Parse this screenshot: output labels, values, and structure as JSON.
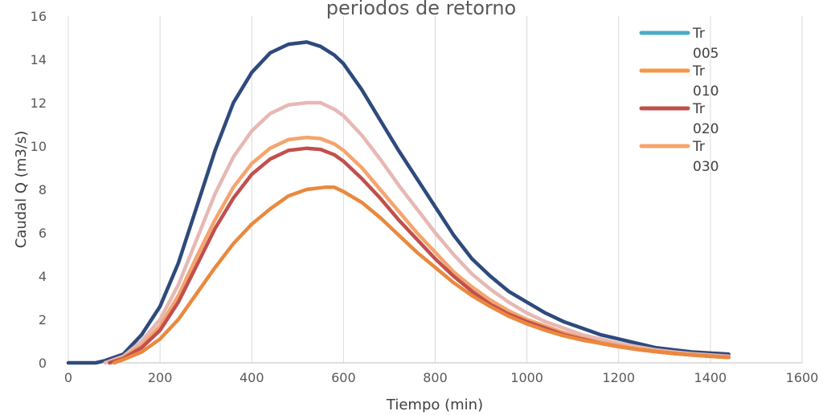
{
  "chart_data": {
    "type": "line",
    "title": "periodos de retorno",
    "xlabel": "Tiempo (min)",
    "ylabel": "Caudal Q (m3/s)",
    "xlim": [
      0,
      1600
    ],
    "ylim": [
      0,
      16
    ],
    "xticks": [
      0,
      200,
      400,
      600,
      800,
      1000,
      1200,
      1400,
      1600
    ],
    "yticks": [
      0,
      2,
      4,
      6,
      8,
      10,
      12,
      14,
      16
    ],
    "xtick_labels": [
      "0",
      "200",
      "400",
      "600",
      "800",
      "1000",
      "1200",
      "1400",
      "1600"
    ],
    "ytick_labels": [
      "0",
      "2",
      "4",
      "6",
      "8",
      "10",
      "12",
      "14",
      "16"
    ],
    "grid": "vertical",
    "legend_position": "top-right",
    "legend": [
      {
        "line1": "Tr",
        "line2": "005",
        "color": "#4BACC6"
      },
      {
        "line1": "Tr",
        "line2": "010",
        "color": "#F79646"
      },
      {
        "line1": "Tr",
        "line2": "020",
        "color": "#C0504D"
      },
      {
        "line1": "Tr",
        "line2": "030",
        "color": "#F5A46E"
      }
    ],
    "series": [
      {
        "color": "#2E4A7D",
        "x": [
          0,
          60,
          80,
          120,
          160,
          200,
          240,
          280,
          320,
          360,
          400,
          440,
          480,
          520,
          550,
          580,
          600,
          640,
          680,
          720,
          760,
          800,
          840,
          880,
          920,
          960,
          1000,
          1040,
          1080,
          1120,
          1160,
          1200,
          1240,
          1280,
          1320,
          1360,
          1400,
          1440
        ],
        "y": [
          0,
          0,
          0.1,
          0.4,
          1.3,
          2.6,
          4.6,
          7.2,
          9.8,
          12.0,
          13.4,
          14.3,
          14.7,
          14.8,
          14.6,
          14.2,
          13.8,
          12.6,
          11.2,
          9.8,
          8.5,
          7.2,
          5.9,
          4.8,
          4.0,
          3.3,
          2.8,
          2.3,
          1.9,
          1.6,
          1.3,
          1.1,
          0.9,
          0.7,
          0.6,
          0.5,
          0.45,
          0.4
        ]
      },
      {
        "color": "#E6B8B4",
        "x": [
          80,
          120,
          160,
          200,
          240,
          280,
          320,
          360,
          400,
          440,
          480,
          520,
          550,
          580,
          600,
          640,
          680,
          720,
          760,
          800,
          840,
          880,
          920,
          960,
          1000,
          1040,
          1080,
          1120,
          1160,
          1200,
          1240,
          1280,
          1320,
          1360,
          1400,
          1440
        ],
        "y": [
          0,
          0.3,
          1.0,
          2.0,
          3.6,
          5.7,
          7.8,
          9.5,
          10.7,
          11.5,
          11.9,
          12.0,
          12.0,
          11.7,
          11.4,
          10.5,
          9.4,
          8.2,
          7.1,
          6.0,
          5.0,
          4.1,
          3.4,
          2.8,
          2.3,
          1.9,
          1.6,
          1.3,
          1.1,
          0.9,
          0.75,
          0.6,
          0.5,
          0.42,
          0.36,
          0.3
        ]
      },
      {
        "color": "#F5A46E",
        "x": [
          90,
          120,
          160,
          200,
          240,
          280,
          320,
          360,
          400,
          440,
          480,
          520,
          550,
          580,
          600,
          640,
          680,
          720,
          760,
          800,
          840,
          880,
          920,
          960,
          1000,
          1040,
          1080,
          1120,
          1160,
          1200,
          1240,
          1280,
          1320,
          1360,
          1400,
          1440
        ],
        "y": [
          0,
          0.25,
          0.8,
          1.7,
          3.1,
          4.9,
          6.6,
          8.1,
          9.2,
          9.9,
          10.3,
          10.4,
          10.35,
          10.1,
          9.8,
          9.0,
          8.0,
          7.0,
          6.0,
          5.1,
          4.2,
          3.5,
          2.9,
          2.4,
          2.0,
          1.7,
          1.4,
          1.15,
          0.95,
          0.8,
          0.65,
          0.55,
          0.45,
          0.38,
          0.32,
          0.27
        ]
      },
      {
        "color": "#C0504D",
        "x": [
          90,
          120,
          160,
          200,
          240,
          280,
          320,
          360,
          400,
          440,
          480,
          520,
          550,
          580,
          600,
          640,
          680,
          720,
          760,
          800,
          840,
          880,
          920,
          960,
          1000,
          1040,
          1080,
          1120,
          1160,
          1200,
          1240,
          1280,
          1320,
          1360,
          1400,
          1440
        ],
        "y": [
          0,
          0.2,
          0.7,
          1.5,
          2.8,
          4.5,
          6.2,
          7.6,
          8.7,
          9.4,
          9.8,
          9.9,
          9.85,
          9.6,
          9.3,
          8.5,
          7.6,
          6.6,
          5.7,
          4.8,
          4.0,
          3.3,
          2.7,
          2.25,
          1.9,
          1.6,
          1.3,
          1.1,
          0.9,
          0.75,
          0.62,
          0.52,
          0.43,
          0.36,
          0.3,
          0.25
        ]
      },
      {
        "color": "#E9893E",
        "x": [
          100,
          120,
          160,
          200,
          240,
          280,
          320,
          360,
          400,
          440,
          480,
          520,
          560,
          580,
          600,
          640,
          680,
          720,
          760,
          800,
          840,
          880,
          920,
          960,
          1000,
          1040,
          1080,
          1120,
          1160,
          1200,
          1240,
          1280,
          1320,
          1360,
          1400,
          1440
        ],
        "y": [
          0,
          0.15,
          0.5,
          1.1,
          2.0,
          3.2,
          4.4,
          5.5,
          6.4,
          7.1,
          7.7,
          8.0,
          8.1,
          8.1,
          7.9,
          7.4,
          6.7,
          5.9,
          5.1,
          4.4,
          3.7,
          3.1,
          2.6,
          2.15,
          1.8,
          1.5,
          1.25,
          1.05,
          0.9,
          0.75,
          0.62,
          0.52,
          0.43,
          0.36,
          0.3,
          0.25
        ]
      }
    ]
  }
}
